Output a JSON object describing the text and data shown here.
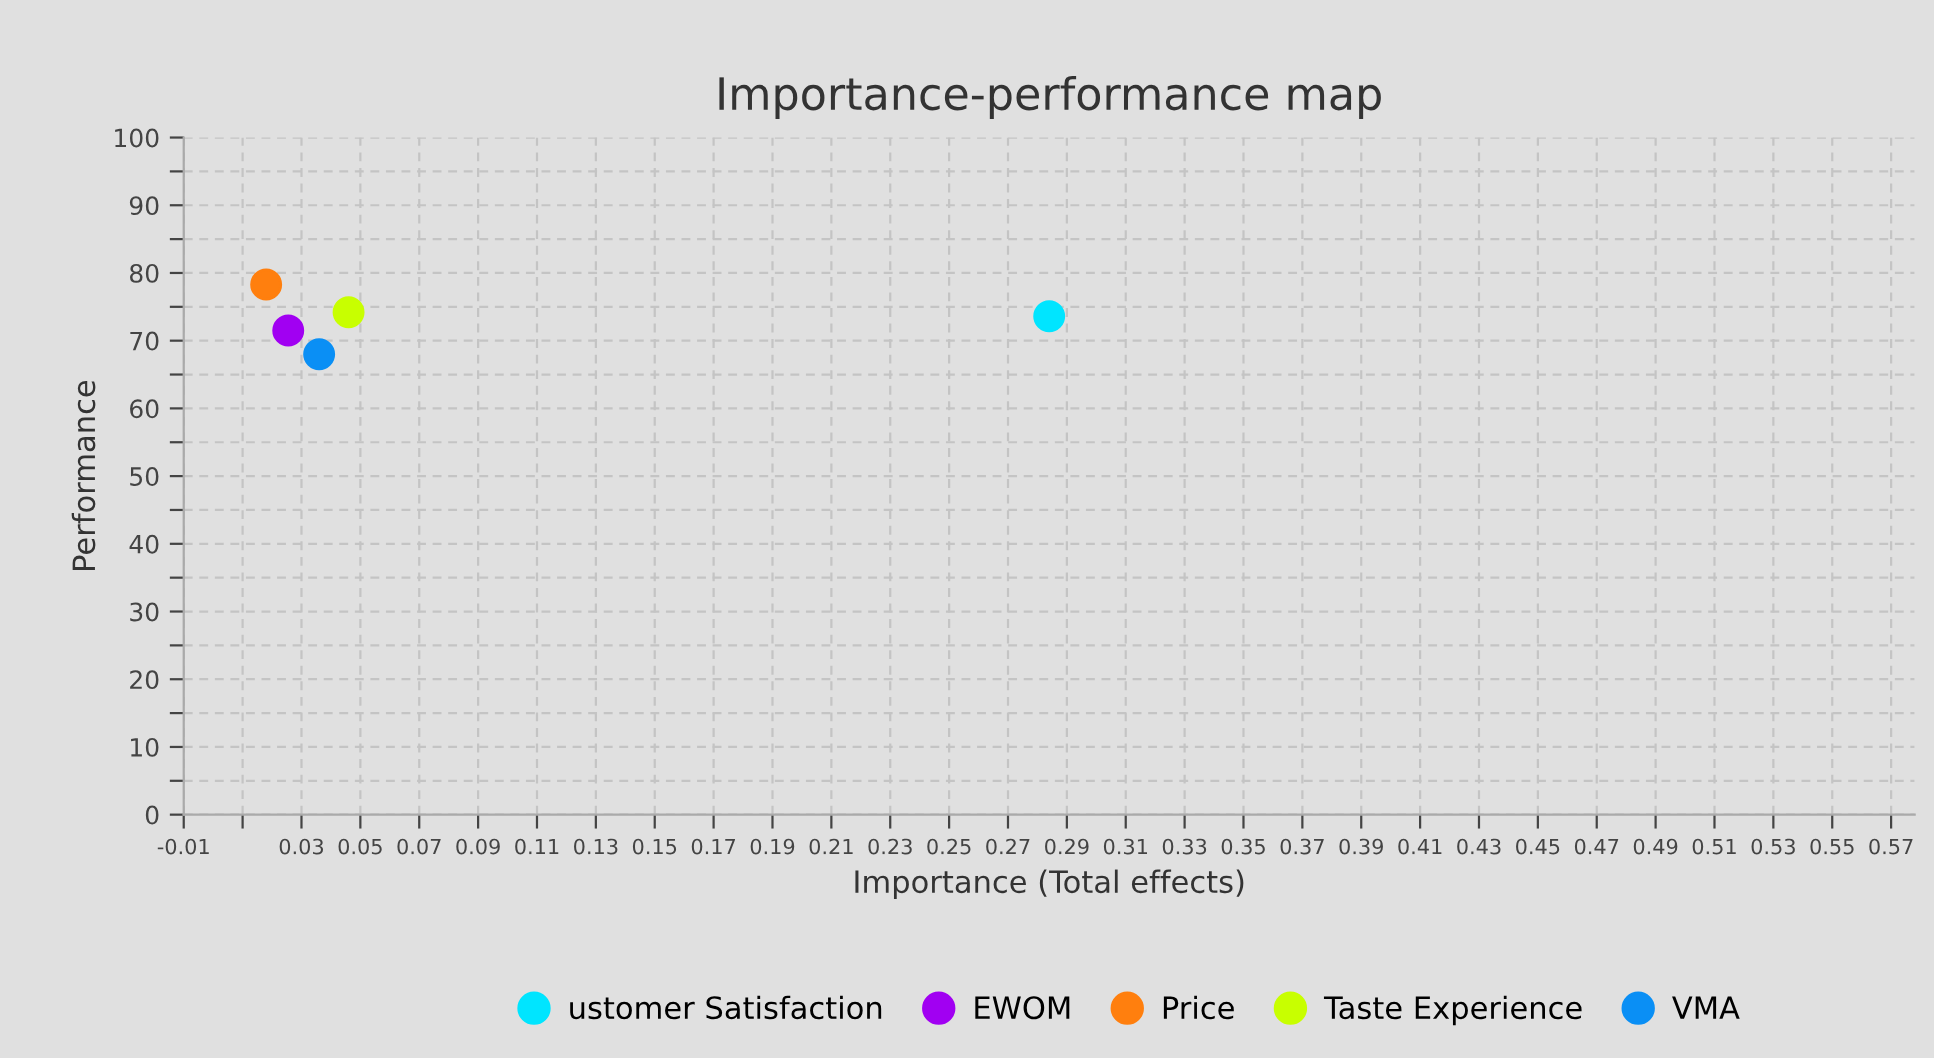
{
  "chart_data": {
    "type": "scatter",
    "title": "Importance-performance map",
    "xlabel": "Importance (Total effects)",
    "ylabel": "Performance",
    "series": [
      {
        "name": "ustomer Satisfaction",
        "color": "#00e5ff",
        "x": [
          0.284
        ],
        "values": [
          73.6
        ]
      },
      {
        "name": "EWOM",
        "color": "#a100f2",
        "x": [
          0.0255
        ],
        "values": [
          71.5
        ]
      },
      {
        "name": "Price",
        "color": "#ff7f0e",
        "x": [
          0.018
        ],
        "values": [
          78.3
        ]
      },
      {
        "name": "Taste Experience",
        "color": "#c8ff00",
        "x": [
          0.046
        ],
        "values": [
          74.2
        ]
      },
      {
        "name": "VMA",
        "color": "#0a8ff5",
        "x": [
          0.036
        ],
        "values": [
          68
        ]
      }
    ],
    "xlim": [
      -0.01,
      0.578
    ],
    "xticks": [
      -0.01,
      {
        "value": 0.01,
        "label": null
      },
      0.03,
      0.05,
      0.07,
      0.09,
      0.11,
      0.13,
      0.15,
      0.17,
      0.19,
      0.21,
      0.23,
      0.25,
      0.27,
      0.29,
      0.31,
      0.33,
      0.35,
      0.37,
      0.39,
      0.41,
      0.43,
      0.45,
      0.47,
      0.49,
      0.51,
      0.53,
      0.55,
      0.57
    ],
    "ylim": [
      0,
      100
    ],
    "yticks": [
      0,
      {
        "value": 5,
        "label": null
      },
      10,
      {
        "value": 15,
        "label": null
      },
      20,
      {
        "value": 25,
        "label": null
      },
      30,
      {
        "value": 35,
        "label": null
      },
      40,
      {
        "value": 45,
        "label": null
      },
      50,
      {
        "value": 55,
        "label": null
      },
      60,
      {
        "value": 65,
        "label": null
      },
      70,
      {
        "value": 75,
        "label": null
      },
      80,
      {
        "value": 85,
        "label": null
      },
      90,
      {
        "value": 95,
        "label": null
      },
      100
    ],
    "grid": true,
    "legend": "bottom",
    "marker": "circle"
  }
}
